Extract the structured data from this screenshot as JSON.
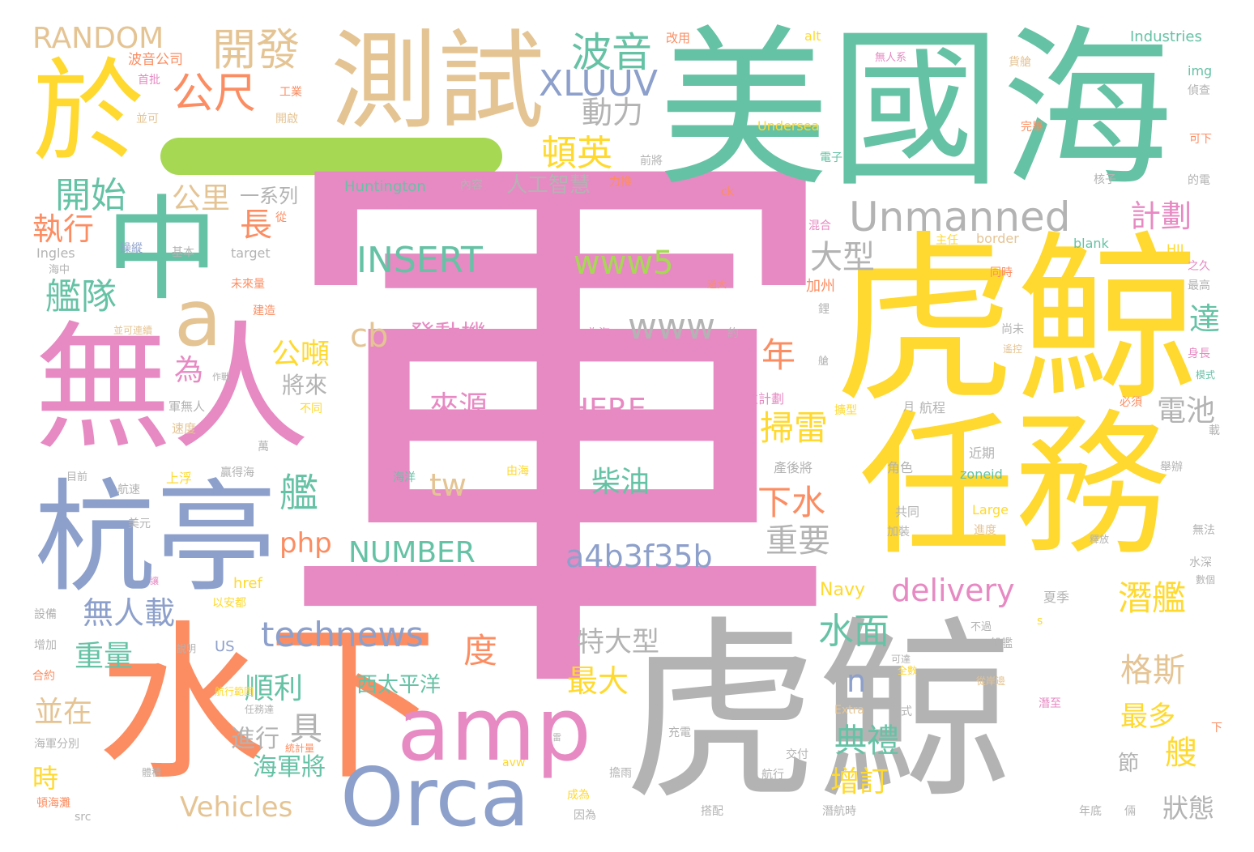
{
  "colors": {
    "pink": "#e78ac3",
    "gray": "#b3b3b3",
    "yellow": "#ffd92f",
    "teal": "#66c2a5",
    "tan": "#e5c494",
    "orange": "#fc8d62",
    "blue": "#8da0cb",
    "green": "#a6d854"
  },
  "words": [
    "軍",
    "美國海",
    "虎鯨",
    "虎鯨",
    "任務",
    "無人",
    "水下",
    "杭亭",
    "測試",
    "中",
    "於",
    "amp",
    "Orca",
    "一",
    "a",
    "開發",
    "RANDOM",
    "公尺",
    "波音",
    "XLUUV",
    "動力",
    "頓英",
    "開始",
    "公里",
    "一系列",
    "人工智慧",
    "Unmanned",
    "執行",
    "長",
    "大型",
    "INSERT",
    "www5",
    "計劃",
    "艦隊",
    "www",
    "cb",
    "發動機",
    "年",
    "公噸",
    "將來",
    "為",
    "達",
    "來源",
    "HERE",
    "掃雷",
    "電池",
    "艦",
    "tw",
    "柴油",
    "下水",
    "php",
    "NUMBER",
    "a4b3f35b",
    "重要",
    "潛艦",
    "delivery",
    "無人載",
    "水面",
    "technews",
    "重量",
    "特大型",
    "度",
    "格斯",
    "順利",
    "西太平洋",
    "最大",
    "n",
    "並在",
    "具",
    "最多",
    "典禮",
    "艘",
    "進行",
    "海軍將",
    "增訂",
    "時",
    "Vehicles",
    "狀態",
    "節",
    "Undersea",
    "Huntington",
    "Industries",
    "alt",
    "img",
    "波音公司",
    "改用",
    "首批",
    "並可",
    "開啟",
    "工業",
    "前將",
    "力推",
    "電子",
    "核子",
    "的電",
    "混合",
    "主任",
    "border",
    "blank",
    "HII",
    "之久",
    "最高",
    "操縱",
    "基本",
    "target",
    "Ingles",
    "海中",
    "未來量",
    "建造",
    "並可連續",
    "過大",
    "同時",
    "遙控",
    "加州",
    "鋰",
    "尚未",
    "為海",
    "約",
    "身長",
    "模式",
    "作戰",
    "軍無人",
    "速度",
    "不同",
    "並計劃",
    "擴型",
    "月",
    "航程",
    "必須",
    "載",
    "上浮",
    "贏得海",
    "萬",
    "目前",
    "航速",
    "美元",
    "海洋",
    "由海",
    "角色",
    "產後將",
    "近期",
    "zoneid",
    "舉辦",
    "共同",
    "Large",
    "加裝",
    "進度",
    "釋放",
    "無法",
    "水深",
    "數個",
    "讓",
    "設備",
    "以安都",
    "href",
    "Navy",
    "夏季",
    "說明",
    "US",
    "增加",
    "合約",
    "不過",
    "可達",
    "全數",
    "從岸邊",
    "任務達",
    "Extra",
    "方式",
    "潛至",
    "海軍分別",
    "統計量",
    "充電",
    "雷",
    "交付",
    "航行",
    "擔雨",
    "成為",
    "因為",
    "搭配",
    "年底",
    "倆",
    "src",
    "avw",
    "頓海灘",
    "體積",
    "潛航時",
    "下",
    "s",
    "船艦",
    "內容",
    "完畢",
    "可下",
    "從",
    "貨艙",
    "ck",
    "偵查",
    "無人系",
    "航行範圍",
    "艙"
  ]
}
